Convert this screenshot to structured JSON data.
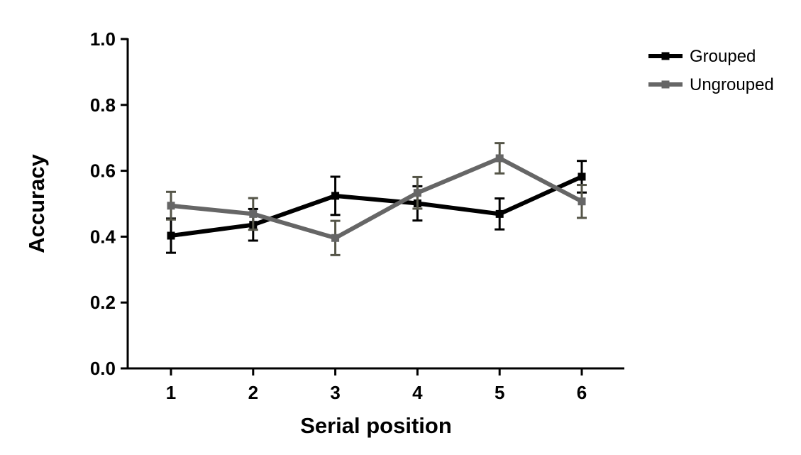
{
  "chart_data": {
    "type": "line",
    "xlabel": "Serial position",
    "ylabel": "Accuracy",
    "x": [
      1,
      2,
      3,
      4,
      5,
      6
    ],
    "x_tick_labels": [
      "1",
      "2",
      "3",
      "4",
      "5",
      "6"
    ],
    "ylim": [
      0.0,
      1.0
    ],
    "y_ticks": [
      0.0,
      0.2,
      0.4,
      0.6,
      0.8,
      1.0
    ],
    "y_tick_labels": [
      "0.0",
      "0.2",
      "0.4",
      "0.6",
      "0.8",
      "1.0"
    ],
    "grid": false,
    "legend_position": "top-right",
    "series": [
      {
        "name": "Grouped",
        "color": "#000000",
        "values": [
          0.403,
          0.436,
          0.524,
          0.501,
          0.469,
          0.582
        ],
        "error": [
          0.052,
          0.048,
          0.058,
          0.052,
          0.047,
          0.048
        ]
      },
      {
        "name": "Ungrouped",
        "color": "#666666",
        "errorbar_color": "#555548",
        "values": [
          0.494,
          0.469,
          0.396,
          0.533,
          0.638,
          0.507
        ],
        "error": [
          0.042,
          0.048,
          0.052,
          0.048,
          0.046,
          0.05
        ]
      }
    ]
  }
}
